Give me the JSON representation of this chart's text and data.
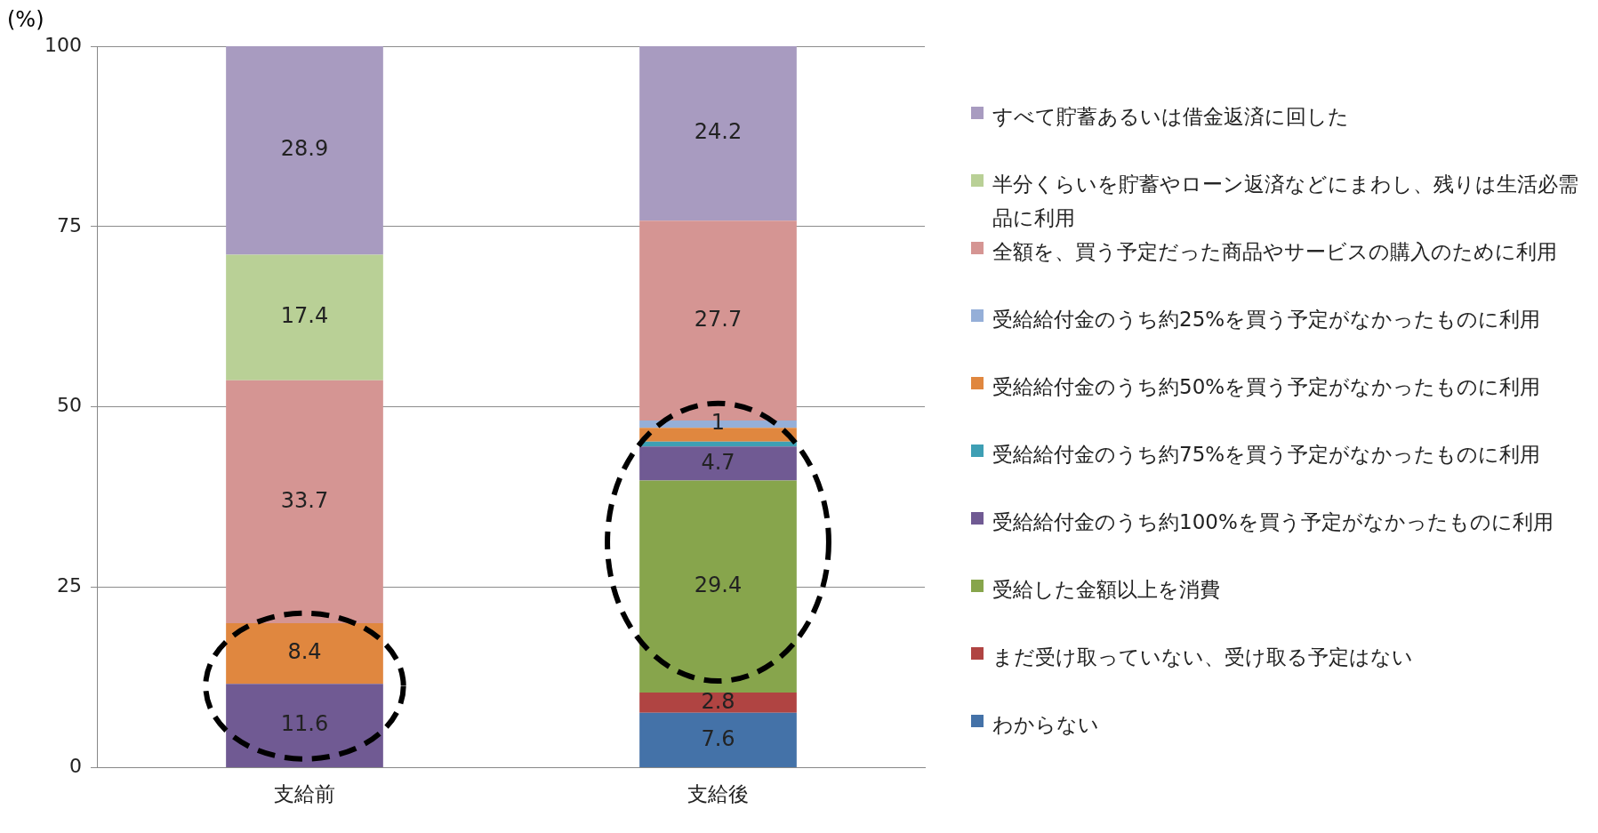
{
  "chart_data": {
    "type": "bar",
    "stacked": true,
    "ylabel": "(%)",
    "categories": [
      "支給前",
      "支給後"
    ],
    "ylim": [
      0,
      100
    ],
    "yticks": [
      0,
      25,
      50,
      75,
      100
    ],
    "grid": "y",
    "legend": "right",
    "series": [
      {
        "name": "わからない",
        "color": "#4472a8",
        "values": [
          null,
          7.6
        ],
        "value_labels": [
          null,
          "7.6"
        ]
      },
      {
        "name": "まだ受け取っていない、受け取る予定はない",
        "color": "#b04442",
        "values": [
          null,
          2.8
        ],
        "value_labels": [
          null,
          "2.8"
        ]
      },
      {
        "name": "受給した金額以上を消費",
        "color": "#87a54c",
        "values": [
          null,
          29.4
        ],
        "value_labels": [
          null,
          "29.4"
        ]
      },
      {
        "name": "受給給付金のうち約100%を買う予定がなかったものに利用",
        "color": "#705a93",
        "values": [
          11.6,
          4.7
        ],
        "value_labels": [
          "11.6",
          "4.7"
        ]
      },
      {
        "name": "受給給付金のうち約75%を買う予定がなかったものに利用",
        "color": "#3e9fb4",
        "values": [
          null,
          0.7
        ],
        "value_labels": [
          null,
          null
        ]
      },
      {
        "name": "受給給付金のうち約50%を買う予定がなかったものに利用",
        "color": "#e0873f",
        "values": [
          8.4,
          1.9
        ],
        "value_labels": [
          "8.4",
          null
        ]
      },
      {
        "name": "受給給付金のうち約25%を買う予定がなかったものに利用",
        "color": "#95afd8",
        "values": [
          null,
          1
        ],
        "value_labels": [
          null,
          "1"
        ]
      },
      {
        "name": "全額を、買う予定だった商品やサービスの購入のために利用",
        "color": "#d59593",
        "values": [
          33.7,
          27.7
        ],
        "value_labels": [
          "33.7",
          "27.7"
        ]
      },
      {
        "name": "半分くらいを貯蓄やローン返済などにまわし、残りは生活必需品に利用",
        "color": "#b9d096",
        "values": [
          17.4,
          null
        ],
        "value_labels": [
          "17.4",
          null
        ]
      },
      {
        "name": "すべて貯蓄あるいは借金返済に回した",
        "color": "#a89bc0",
        "values": [
          28.9,
          24.2
        ],
        "value_labels": [
          "28.9",
          "24.2"
        ]
      }
    ]
  }
}
